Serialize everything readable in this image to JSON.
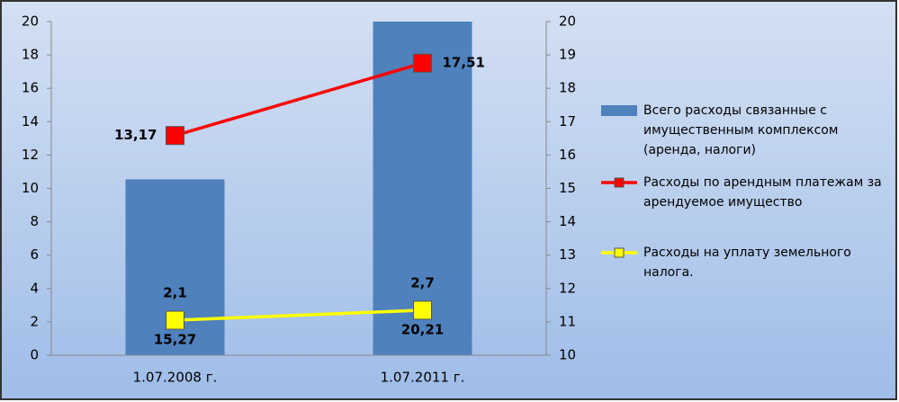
{
  "chart_data": {
    "type": "bar",
    "categories": [
      "1.07.2008 г.",
      "1.07.2011 г."
    ],
    "ylim": [
      0,
      20
    ],
    "yticks": [
      0,
      2,
      4,
      6,
      8,
      10,
      12,
      14,
      16,
      18,
      20
    ],
    "y2lim": [
      10,
      20
    ],
    "y2ticks": [
      10,
      11,
      12,
      13,
      14,
      15,
      16,
      17,
      18,
      19,
      20
    ],
    "grid": false,
    "legend": "right",
    "series": [
      {
        "name": "Всего расходы связанные с имущественным комплексом (аренда, налоги)",
        "type": "bar",
        "axis": "y2",
        "color": "#4f81bd",
        "values": [
          15.27,
          20.21
        ],
        "value_labels": [
          "15,27",
          "20,21"
        ]
      },
      {
        "name": "Расходы по арендным платежам за арендуемое имущество",
        "type": "line",
        "color": "#ff0000",
        "values": [
          13.17,
          17.51
        ],
        "value_labels": [
          "13,17",
          "17,51"
        ]
      },
      {
        "name": "Расходы на уплату земельного налога.",
        "type": "line",
        "color": "#ffff00",
        "values": [
          2.1,
          2.7
        ],
        "value_labels": [
          "2,1",
          "2,7"
        ]
      }
    ]
  }
}
